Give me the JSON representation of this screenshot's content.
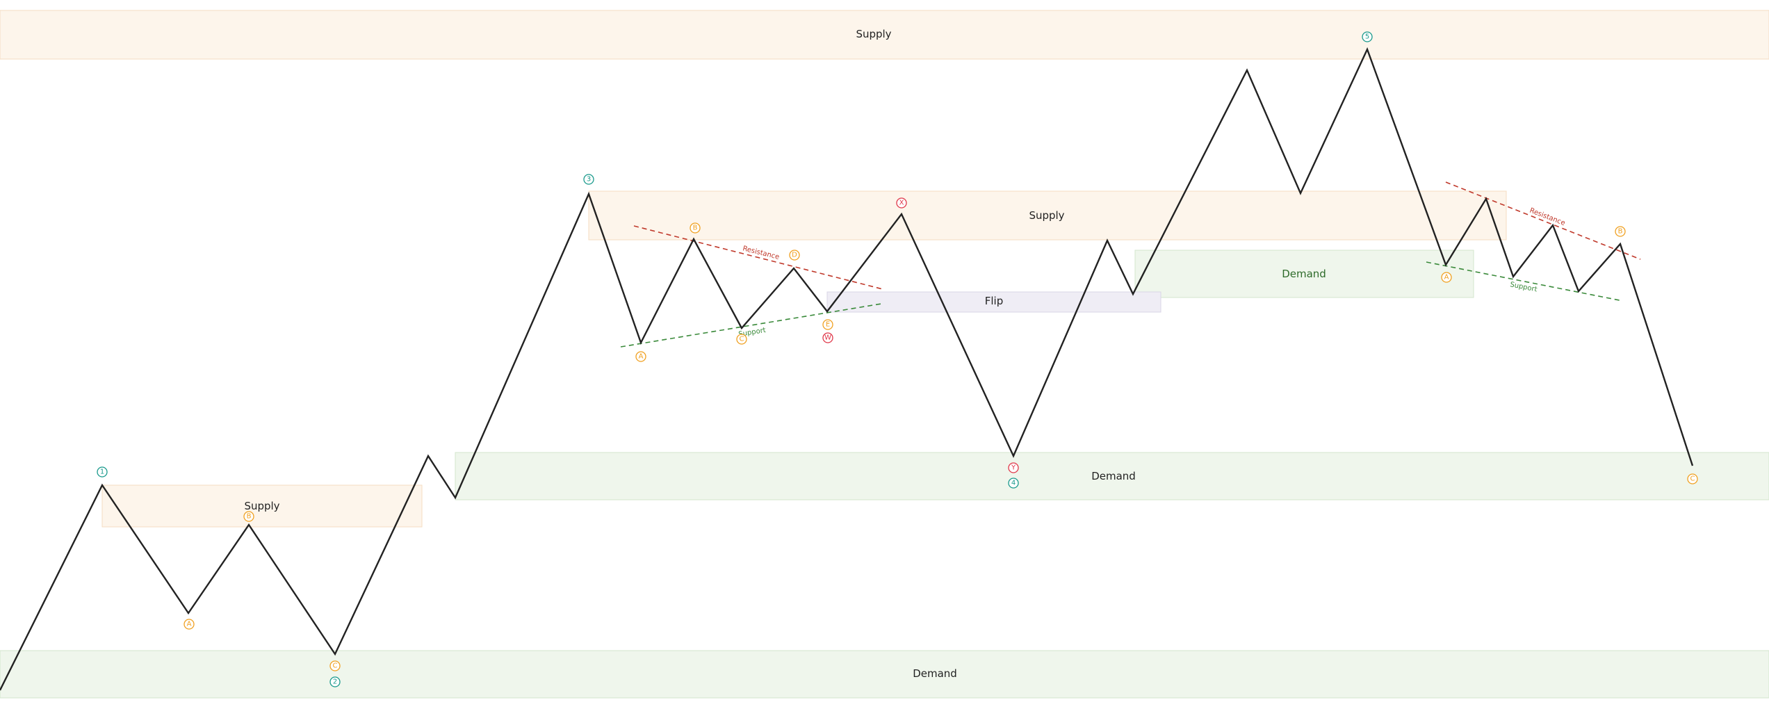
{
  "colors": {
    "supply_fill": "#fdf5eb",
    "supply_stroke": "#f5dcc0",
    "demand_fill": "#eff6ec",
    "demand_stroke": "#d3e6cd",
    "flip_fill": "#efedf5",
    "flip_stroke": "#d9d5e6",
    "wave": "#222222",
    "teal": "#1a9a8c",
    "orange": "#f0a020",
    "red": "#e0384a",
    "resistance": "#c0392b",
    "support": "#3a8a3a"
  },
  "zones": [
    {
      "id": "supply-top",
      "type": "supply",
      "label": "Supply"
    },
    {
      "id": "supply-left",
      "type": "supply",
      "label": "Supply"
    },
    {
      "id": "supply-middle",
      "type": "supply",
      "label": "Supply"
    },
    {
      "id": "demand-bottom",
      "type": "demand",
      "label": "Demand"
    },
    {
      "id": "demand-middle",
      "type": "demand",
      "label": "Demand"
    },
    {
      "id": "demand-right",
      "type": "demand",
      "label": "Demand"
    },
    {
      "id": "flip",
      "type": "flip",
      "label": "Flip"
    }
  ],
  "markers": [
    {
      "id": "wave-1",
      "label": "1",
      "color": "teal"
    },
    {
      "id": "wave-2",
      "label": "2",
      "color": "teal"
    },
    {
      "id": "wave-3",
      "label": "3",
      "color": "teal"
    },
    {
      "id": "wave-4",
      "label": "4",
      "color": "teal"
    },
    {
      "id": "wave-5",
      "label": "5",
      "color": "teal"
    },
    {
      "id": "corr1-a",
      "label": "A",
      "color": "orange"
    },
    {
      "id": "corr1-b",
      "label": "B",
      "color": "orange"
    },
    {
      "id": "corr1-c",
      "label": "C",
      "color": "orange"
    },
    {
      "id": "tri-a",
      "label": "A",
      "color": "orange"
    },
    {
      "id": "tri-b",
      "label": "B",
      "color": "orange"
    },
    {
      "id": "tri-c",
      "label": "C",
      "color": "orange"
    },
    {
      "id": "tri-d",
      "label": "D",
      "color": "orange"
    },
    {
      "id": "tri-e",
      "label": "E",
      "color": "orange"
    },
    {
      "id": "wxy-w",
      "label": "W",
      "color": "red"
    },
    {
      "id": "wxy-x",
      "label": "X",
      "color": "red"
    },
    {
      "id": "wxy-y",
      "label": "Y",
      "color": "red"
    },
    {
      "id": "corr2-a",
      "label": "A",
      "color": "orange"
    },
    {
      "id": "corr2-b",
      "label": "B",
      "color": "orange"
    },
    {
      "id": "corr2-c",
      "label": "C",
      "color": "orange"
    }
  ],
  "trendlines": [
    {
      "id": "tri-resistance",
      "kind": "resistance",
      "label": "Resistance"
    },
    {
      "id": "tri-support",
      "kind": "support",
      "label": "Support"
    },
    {
      "id": "flag-resistance",
      "kind": "resistance",
      "label": "Resistance"
    },
    {
      "id": "flag-support",
      "kind": "support",
      "label": "Support"
    }
  ]
}
